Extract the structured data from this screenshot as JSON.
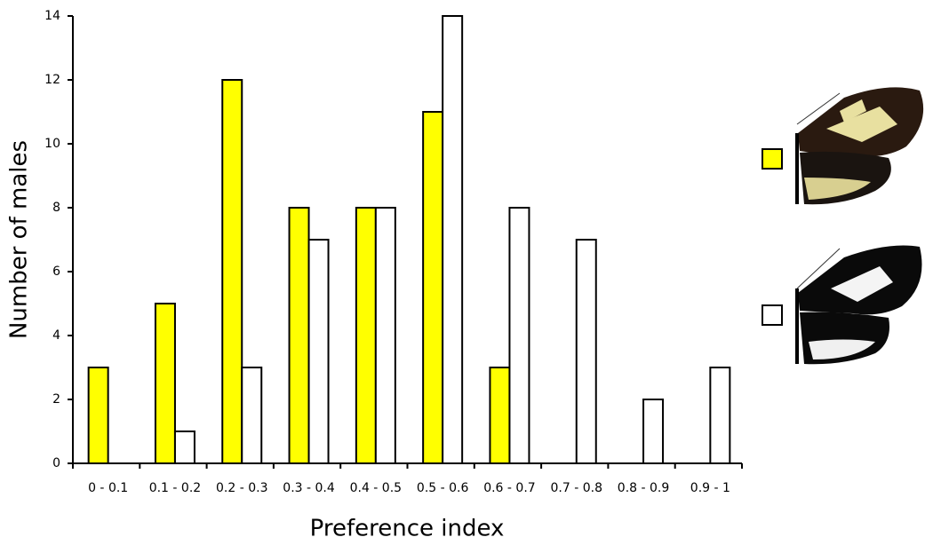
{
  "chart_data": {
    "type": "bar",
    "categories": [
      "0 - 0.1",
      "0.1 - 0.2",
      "0.2 - 0.3",
      "0.3 - 0.4",
      "0.4 - 0.5",
      "0.5 - 0.6",
      "0.6 - 0.7",
      "0.7 - 0.8",
      "0.8 - 0.9",
      "0.9 - 1"
    ],
    "series": [
      {
        "color": "#ffff00",
        "values": [
          3,
          5,
          12,
          8,
          8,
          11,
          3,
          0,
          0,
          0
        ]
      },
      {
        "color": "#ffffff",
        "values": [
          0,
          1,
          3,
          7,
          8,
          14,
          8,
          7,
          2,
          3
        ]
      }
    ],
    "xlabel": "Preference index",
    "ylabel": "Number of males",
    "ylim": [
      0,
      14
    ],
    "yticks": [
      0,
      2,
      4,
      6,
      8,
      10,
      12,
      14
    ],
    "grid": false
  }
}
